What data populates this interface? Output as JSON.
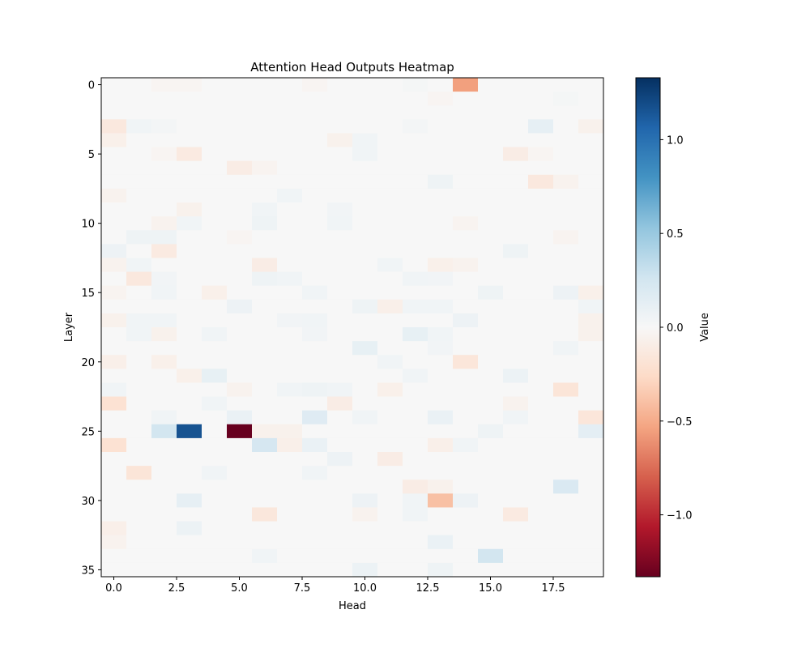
{
  "chart_data": {
    "type": "heatmap",
    "title": "Attention Head Outputs Heatmap",
    "xlabel": "Head",
    "ylabel": "Layer",
    "colorbar_label": "Value",
    "colormap": "RdBu",
    "n_cols": 20,
    "n_rows": 36,
    "vmin": -1.33,
    "vmax": 1.33,
    "xlim": [
      -0.5,
      19.5
    ],
    "ylim": [
      35.5,
      -0.5
    ],
    "x_ticks": [
      0.0,
      2.5,
      5.0,
      7.5,
      10.0,
      12.5,
      15.0,
      17.5
    ],
    "x_tick_labels": [
      "0.0",
      "2.5",
      "5.0",
      "7.5",
      "10.0",
      "12.5",
      "15.0",
      "17.5"
    ],
    "y_ticks": [
      0,
      5,
      10,
      15,
      20,
      25,
      30,
      35
    ],
    "y_tick_labels": [
      "0",
      "5",
      "10",
      "15",
      "20",
      "25",
      "30",
      "35"
    ],
    "colorbar_ticks": [
      1.0,
      0.5,
      0.0,
      -0.5,
      -1.0
    ],
    "colorbar_tick_labels": [
      "1.0",
      "0.5",
      "0.0",
      "−0.5",
      "−1.0"
    ],
    "background_value": 0.0,
    "cells": [
      {
        "row": 0,
        "col": 14,
        "value": -0.55
      },
      {
        "row": 0,
        "col": 2,
        "value": -0.03
      },
      {
        "row": 0,
        "col": 3,
        "value": -0.03
      },
      {
        "row": 0,
        "col": 8,
        "value": -0.03
      },
      {
        "row": 0,
        "col": 12,
        "value": 0.02
      },
      {
        "row": 1,
        "col": 13,
        "value": -0.03
      },
      {
        "row": 1,
        "col": 18,
        "value": 0.02
      },
      {
        "row": 3,
        "col": 0,
        "value": -0.14
      },
      {
        "row": 3,
        "col": 1,
        "value": 0.05
      },
      {
        "row": 3,
        "col": 2,
        "value": 0.03
      },
      {
        "row": 3,
        "col": 17,
        "value": 0.12
      },
      {
        "row": 3,
        "col": 19,
        "value": -0.06
      },
      {
        "row": 3,
        "col": 12,
        "value": 0.03
      },
      {
        "row": 4,
        "col": 0,
        "value": -0.07
      },
      {
        "row": 4,
        "col": 9,
        "value": -0.06
      },
      {
        "row": 4,
        "col": 10,
        "value": 0.05
      },
      {
        "row": 5,
        "col": 3,
        "value": -0.12
      },
      {
        "row": 5,
        "col": 10,
        "value": 0.05
      },
      {
        "row": 5,
        "col": 16,
        "value": -0.1
      },
      {
        "row": 5,
        "col": 2,
        "value": -0.03
      },
      {
        "row": 5,
        "col": 17,
        "value": -0.03
      },
      {
        "row": 6,
        "col": 5,
        "value": -0.1
      },
      {
        "row": 6,
        "col": 6,
        "value": -0.04
      },
      {
        "row": 7,
        "col": 13,
        "value": 0.06
      },
      {
        "row": 7,
        "col": 17,
        "value": -0.14
      },
      {
        "row": 7,
        "col": 18,
        "value": -0.05
      },
      {
        "row": 8,
        "col": 0,
        "value": -0.05
      },
      {
        "row": 8,
        "col": 7,
        "value": 0.05
      },
      {
        "row": 9,
        "col": 3,
        "value": -0.06
      },
      {
        "row": 9,
        "col": 6,
        "value": 0.05
      },
      {
        "row": 9,
        "col": 9,
        "value": 0.04
      },
      {
        "row": 10,
        "col": 2,
        "value": -0.05
      },
      {
        "row": 10,
        "col": 3,
        "value": 0.05
      },
      {
        "row": 10,
        "col": 6,
        "value": 0.06
      },
      {
        "row": 10,
        "col": 9,
        "value": 0.05
      },
      {
        "row": 10,
        "col": 14,
        "value": -0.04
      },
      {
        "row": 11,
        "col": 1,
        "value": 0.06
      },
      {
        "row": 11,
        "col": 2,
        "value": 0.06
      },
      {
        "row": 11,
        "col": 5,
        "value": -0.03
      },
      {
        "row": 11,
        "col": 18,
        "value": -0.04
      },
      {
        "row": 12,
        "col": 0,
        "value": 0.07
      },
      {
        "row": 12,
        "col": 2,
        "value": -0.12
      },
      {
        "row": 12,
        "col": 16,
        "value": 0.06
      },
      {
        "row": 13,
        "col": 0,
        "value": -0.05
      },
      {
        "row": 13,
        "col": 1,
        "value": 0.05
      },
      {
        "row": 13,
        "col": 6,
        "value": -0.1
      },
      {
        "row": 13,
        "col": 11,
        "value": 0.05
      },
      {
        "row": 13,
        "col": 13,
        "value": -0.07
      },
      {
        "row": 13,
        "col": 14,
        "value": -0.05
      },
      {
        "row": 14,
        "col": 1,
        "value": -0.14
      },
      {
        "row": 14,
        "col": 2,
        "value": 0.04
      },
      {
        "row": 14,
        "col": 6,
        "value": 0.06
      },
      {
        "row": 14,
        "col": 7,
        "value": 0.05
      },
      {
        "row": 14,
        "col": 12,
        "value": 0.05
      },
      {
        "row": 14,
        "col": 13,
        "value": 0.04
      },
      {
        "row": 15,
        "col": 0,
        "value": -0.04
      },
      {
        "row": 15,
        "col": 2,
        "value": 0.05
      },
      {
        "row": 15,
        "col": 4,
        "value": -0.07
      },
      {
        "row": 15,
        "col": 8,
        "value": 0.05
      },
      {
        "row": 15,
        "col": 15,
        "value": 0.06
      },
      {
        "row": 15,
        "col": 18,
        "value": 0.07
      },
      {
        "row": 15,
        "col": 19,
        "value": -0.07
      },
      {
        "row": 16,
        "col": 5,
        "value": 0.07
      },
      {
        "row": 16,
        "col": 10,
        "value": 0.06
      },
      {
        "row": 16,
        "col": 11,
        "value": -0.08
      },
      {
        "row": 16,
        "col": 12,
        "value": 0.05
      },
      {
        "row": 16,
        "col": 13,
        "value": 0.05
      },
      {
        "row": 16,
        "col": 19,
        "value": 0.05
      },
      {
        "row": 17,
        "col": 0,
        "value": -0.06
      },
      {
        "row": 17,
        "col": 1,
        "value": 0.05
      },
      {
        "row": 17,
        "col": 2,
        "value": 0.05
      },
      {
        "row": 17,
        "col": 7,
        "value": 0.04
      },
      {
        "row": 17,
        "col": 8,
        "value": 0.05
      },
      {
        "row": 17,
        "col": 14,
        "value": 0.07
      },
      {
        "row": 17,
        "col": 19,
        "value": -0.06
      },
      {
        "row": 18,
        "col": 1,
        "value": 0.05
      },
      {
        "row": 18,
        "col": 2,
        "value": -0.06
      },
      {
        "row": 18,
        "col": 4,
        "value": 0.05
      },
      {
        "row": 18,
        "col": 8,
        "value": 0.04
      },
      {
        "row": 18,
        "col": 12,
        "value": 0.11
      },
      {
        "row": 18,
        "col": 13,
        "value": 0.05
      },
      {
        "row": 18,
        "col": 19,
        "value": -0.06
      },
      {
        "row": 19,
        "col": 10,
        "value": 0.11
      },
      {
        "row": 19,
        "col": 13,
        "value": 0.04
      },
      {
        "row": 19,
        "col": 18,
        "value": 0.05
      },
      {
        "row": 20,
        "col": 0,
        "value": -0.08
      },
      {
        "row": 20,
        "col": 2,
        "value": -0.07
      },
      {
        "row": 20,
        "col": 11,
        "value": 0.05
      },
      {
        "row": 20,
        "col": 14,
        "value": -0.16
      },
      {
        "row": 21,
        "col": 3,
        "value": -0.07
      },
      {
        "row": 21,
        "col": 4,
        "value": 0.11
      },
      {
        "row": 21,
        "col": 12,
        "value": 0.05
      },
      {
        "row": 21,
        "col": 16,
        "value": 0.08
      },
      {
        "row": 22,
        "col": 0,
        "value": 0.05
      },
      {
        "row": 22,
        "col": 5,
        "value": -0.05
      },
      {
        "row": 22,
        "col": 7,
        "value": 0.05
      },
      {
        "row": 22,
        "col": 8,
        "value": 0.06
      },
      {
        "row": 22,
        "col": 9,
        "value": 0.05
      },
      {
        "row": 22,
        "col": 11,
        "value": -0.07
      },
      {
        "row": 22,
        "col": 18,
        "value": -0.17
      },
      {
        "row": 23,
        "col": 0,
        "value": -0.2
      },
      {
        "row": 23,
        "col": 4,
        "value": 0.05
      },
      {
        "row": 23,
        "col": 9,
        "value": -0.1
      },
      {
        "row": 23,
        "col": 16,
        "value": -0.05
      },
      {
        "row": 24,
        "col": 2,
        "value": 0.05
      },
      {
        "row": 24,
        "col": 5,
        "value": 0.09
      },
      {
        "row": 24,
        "col": 8,
        "value": 0.17
      },
      {
        "row": 24,
        "col": 10,
        "value": 0.05
      },
      {
        "row": 24,
        "col": 13,
        "value": 0.09
      },
      {
        "row": 24,
        "col": 16,
        "value": 0.05
      },
      {
        "row": 24,
        "col": 19,
        "value": -0.16
      },
      {
        "row": 25,
        "col": 2,
        "value": 0.25
      },
      {
        "row": 25,
        "col": 3,
        "value": 1.16
      },
      {
        "row": 25,
        "col": 5,
        "value": -1.33
      },
      {
        "row": 25,
        "col": 6,
        "value": -0.06
      },
      {
        "row": 25,
        "col": 7,
        "value": -0.06
      },
      {
        "row": 25,
        "col": 15,
        "value": 0.06
      },
      {
        "row": 25,
        "col": 19,
        "value": 0.13
      },
      {
        "row": 26,
        "col": 0,
        "value": -0.2
      },
      {
        "row": 26,
        "col": 6,
        "value": 0.23
      },
      {
        "row": 26,
        "col": 7,
        "value": -0.08
      },
      {
        "row": 26,
        "col": 8,
        "value": 0.09
      },
      {
        "row": 26,
        "col": 13,
        "value": -0.08
      },
      {
        "row": 26,
        "col": 14,
        "value": 0.05
      },
      {
        "row": 27,
        "col": 9,
        "value": 0.07
      },
      {
        "row": 27,
        "col": 11,
        "value": -0.1
      },
      {
        "row": 28,
        "col": 1,
        "value": -0.17
      },
      {
        "row": 28,
        "col": 4,
        "value": 0.05
      },
      {
        "row": 28,
        "col": 8,
        "value": 0.05
      },
      {
        "row": 29,
        "col": 12,
        "value": -0.1
      },
      {
        "row": 29,
        "col": 13,
        "value": -0.06
      },
      {
        "row": 29,
        "col": 18,
        "value": 0.2
      },
      {
        "row": 30,
        "col": 3,
        "value": 0.12
      },
      {
        "row": 30,
        "col": 10,
        "value": 0.07
      },
      {
        "row": 30,
        "col": 12,
        "value": 0.05
      },
      {
        "row": 30,
        "col": 13,
        "value": -0.4
      },
      {
        "row": 30,
        "col": 14,
        "value": 0.07
      },
      {
        "row": 31,
        "col": 6,
        "value": -0.15
      },
      {
        "row": 31,
        "col": 10,
        "value": -0.05
      },
      {
        "row": 31,
        "col": 12,
        "value": 0.05
      },
      {
        "row": 31,
        "col": 16,
        "value": -0.12
      },
      {
        "row": 32,
        "col": 0,
        "value": -0.08
      },
      {
        "row": 32,
        "col": 3,
        "value": 0.08
      },
      {
        "row": 33,
        "col": 0,
        "value": -0.05
      },
      {
        "row": 33,
        "col": 13,
        "value": 0.09
      },
      {
        "row": 34,
        "col": 6,
        "value": 0.05
      },
      {
        "row": 34,
        "col": 15,
        "value": 0.25
      },
      {
        "row": 35,
        "col": 10,
        "value": 0.08
      },
      {
        "row": 35,
        "col": 13,
        "value": 0.06
      }
    ]
  }
}
